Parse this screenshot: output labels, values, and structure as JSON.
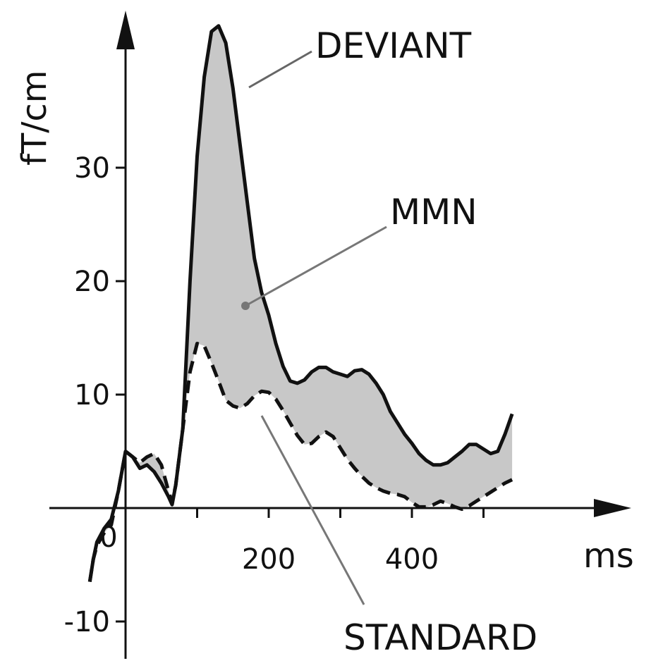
{
  "chart_data": {
    "type": "line",
    "title": "",
    "xlabel": "ms",
    "ylabel": "fT/cm",
    "xlim": [
      -50,
      550
    ],
    "ylim": [
      -13,
      43
    ],
    "x_ticks": [
      0,
      200,
      400
    ],
    "x_tick_labels": [
      "0",
      "200",
      "400"
    ],
    "y_ticks": [
      -10,
      10,
      20,
      30
    ],
    "y_tick_labels": [
      "-10",
      "10",
      "20",
      "30"
    ],
    "grid": false,
    "legend": "none",
    "annotations": {
      "deviant": "DEVIANT",
      "mmn": "MMN",
      "standard": "STANDARD"
    },
    "fill_color": "#c8c8c8",
    "series": [
      {
        "name": "DEVIANT",
        "style": "solid",
        "color": "#111111",
        "x": [
          -50,
          -45,
          -40,
          -30,
          -20,
          -10,
          0,
          10,
          20,
          30,
          40,
          50,
          60,
          65,
          70,
          80,
          90,
          100,
          110,
          120,
          130,
          140,
          150,
          160,
          170,
          180,
          190,
          200,
          210,
          220,
          230,
          240,
          250,
          260,
          270,
          280,
          290,
          300,
          310,
          320,
          330,
          340,
          350,
          360,
          370,
          380,
          390,
          400,
          410,
          420,
          430,
          440,
          450,
          460,
          470,
          480,
          490,
          500,
          510,
          520,
          530,
          540
        ],
        "y": [
          -6.5,
          -4.5,
          -3,
          -1.8,
          -1,
          1.5,
          5,
          4.5,
          3.5,
          3.8,
          3.2,
          2.2,
          1,
          0.3,
          2,
          7,
          20,
          31,
          38,
          42,
          42.5,
          41,
          37,
          32,
          27,
          22,
          19,
          17,
          14.5,
          12.5,
          11.2,
          11,
          11.3,
          12,
          12.4,
          12.4,
          12,
          11.8,
          11.6,
          12.1,
          12.2,
          11.8,
          11,
          10,
          8.5,
          7.5,
          6.5,
          5.7,
          4.8,
          4.2,
          3.8,
          3.8,
          4,
          4.5,
          5,
          5.6,
          5.6,
          5.2,
          4.8,
          5,
          6.5,
          8.3
        ]
      },
      {
        "name": "STANDARD",
        "style": "dashed",
        "color": "#111111",
        "x": [
          -50,
          -45,
          -40,
          -30,
          -20,
          -10,
          0,
          10,
          20,
          30,
          40,
          50,
          60,
          65,
          70,
          80,
          90,
          100,
          110,
          120,
          130,
          140,
          150,
          160,
          170,
          180,
          190,
          200,
          210,
          220,
          230,
          240,
          250,
          260,
          270,
          280,
          290,
          300,
          310,
          320,
          330,
          340,
          350,
          360,
          370,
          380,
          390,
          400,
          410,
          420,
          430,
          440,
          450,
          460,
          470,
          480,
          490,
          500,
          510,
          520,
          530,
          540
        ],
        "y": [
          -6.5,
          -4.5,
          -3.3,
          -2.2,
          -1.5,
          1.5,
          5,
          4.5,
          4,
          4.5,
          4.8,
          3.8,
          1.5,
          0.5,
          2,
          7,
          12,
          14.5,
          14.3,
          12.8,
          11.2,
          9.5,
          9,
          8.8,
          9.2,
          9.9,
          10.3,
          10.2,
          9.6,
          8.6,
          7.5,
          6.4,
          5.6,
          5.7,
          6.3,
          6.7,
          6.3,
          5.3,
          4.3,
          3.5,
          2.8,
          2.2,
          1.8,
          1.5,
          1.3,
          1.2,
          1,
          0.5,
          0.1,
          0.1,
          0.3,
          0.6,
          0.4,
          0.1,
          -0.1,
          0.2,
          0.6,
          1,
          1.4,
          1.8,
          2.2,
          2.5
        ]
      }
    ]
  }
}
